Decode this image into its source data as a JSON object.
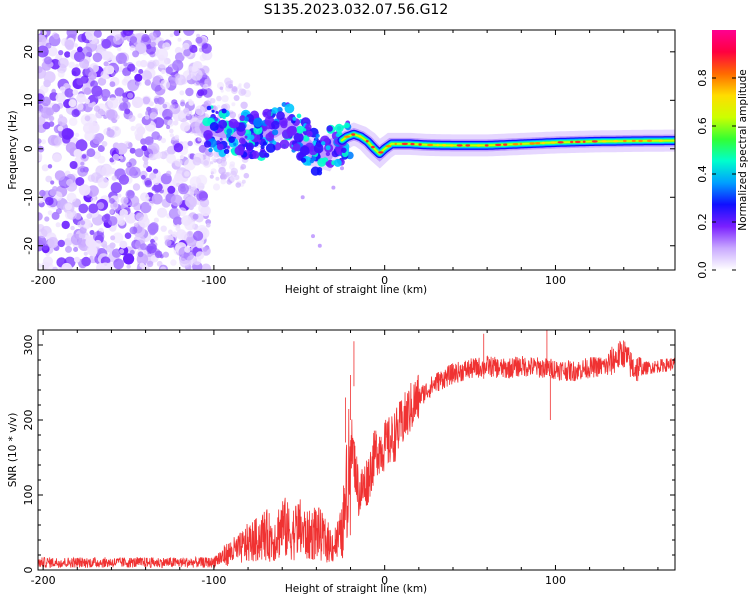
{
  "chart_data": [
    {
      "type": "heatmap",
      "title": "S135.2023.032.07.56.G12",
      "xlabel": "Height of straight line (km)",
      "ylabel": "Frequency (Hz)",
      "xlim": [
        -203,
        170
      ],
      "ylim": [
        -25,
        24.5
      ],
      "xticks": [
        -200,
        -100,
        0,
        100
      ],
      "xtick_labels": [
        "-200",
        "-100",
        "0",
        "100"
      ],
      "yticks": [
        20,
        10,
        0,
        -10,
        -20
      ],
      "ytick_labels": [
        "20",
        "10",
        "0",
        "-10",
        "-20"
      ],
      "colorbar": {
        "label": "Normalized spectral amplitude",
        "range": [
          0,
          1
        ],
        "ticks": [
          0.0,
          0.2,
          0.4,
          0.6,
          0.8
        ],
        "tick_labels": [
          "0.0",
          "0.2",
          "0.4",
          "0.6",
          "0.8"
        ],
        "colors": [
          "#ffffff",
          "#c9a9ff",
          "#7a1fff",
          "#1010ff",
          "#00a0ff",
          "#00ffcc",
          "#33ff33",
          "#ccff00",
          "#ffdd00",
          "#ff6a00",
          "#ff0040",
          "#ff0090"
        ]
      },
      "signal_ridge": {
        "description_points_x": [
          -105,
          -95,
          -85,
          -75,
          -65,
          -58,
          -52,
          -46,
          -40,
          -35,
          -30,
          -26,
          -22,
          -18,
          -14,
          -10,
          -6,
          -3,
          0,
          4,
          8,
          15,
          25,
          40,
          60,
          80,
          100,
          120,
          140,
          170
        ],
        "description_points_y": [
          4.5,
          3.5,
          3.0,
          2.5,
          3.5,
          5.0,
          3.5,
          1.0,
          -1.5,
          -2.0,
          1.0,
          1.5,
          2.5,
          3.0,
          2.5,
          1.5,
          0.0,
          -1.0,
          0.0,
          1.0,
          1.0,
          1.0,
          0.8,
          0.7,
          0.7,
          1.0,
          1.3,
          1.5,
          1.6,
          1.7
        ]
      }
    },
    {
      "type": "line",
      "xlabel": "Height of straight line (km)",
      "ylabel": "SNR (10 * v/v)",
      "xlim": [
        -203,
        170
      ],
      "ylim": [
        0,
        320
      ],
      "xticks": [
        -200,
        -100,
        0,
        100
      ],
      "xtick_labels": [
        "-200",
        "-100",
        "0",
        "100"
      ],
      "yticks": [
        0,
        100,
        200,
        300
      ],
      "ytick_labels": [
        "0",
        "100",
        "200",
        "300"
      ],
      "series": [
        {
          "name": "SNR",
          "color": "#f03232",
          "x": [
            -203,
            -190,
            -170,
            -150,
            -130,
            -110,
            -100,
            -95,
            -90,
            -85,
            -80,
            -75,
            -70,
            -65,
            -60,
            -55,
            -50,
            -45,
            -40,
            -35,
            -30,
            -25,
            -20,
            -15,
            -10,
            -5,
            0,
            5,
            10,
            15,
            20,
            25,
            30,
            40,
            50,
            60,
            70,
            80,
            90,
            100,
            110,
            120,
            130,
            135,
            140,
            145,
            150,
            160,
            170
          ],
          "y": [
            10,
            10,
            10,
            10,
            11,
            12,
            15,
            22,
            30,
            35,
            45,
            50,
            60,
            50,
            75,
            60,
            70,
            55,
            65,
            50,
            40,
            60,
            180,
            100,
            120,
            160,
            165,
            175,
            195,
            215,
            230,
            240,
            250,
            262,
            268,
            272,
            268,
            272,
            270,
            268,
            265,
            270,
            272,
            282,
            290,
            270,
            268,
            272,
            275
          ]
        }
      ],
      "spikes": [
        {
          "x": -18,
          "y": 305
        },
        {
          "x": -20,
          "y": 260
        },
        {
          "x": -23,
          "y": 230
        },
        {
          "x": 58,
          "y": 315
        },
        {
          "x": 95,
          "y": 320
        },
        {
          "x": 97,
          "y": 200
        }
      ]
    }
  ]
}
